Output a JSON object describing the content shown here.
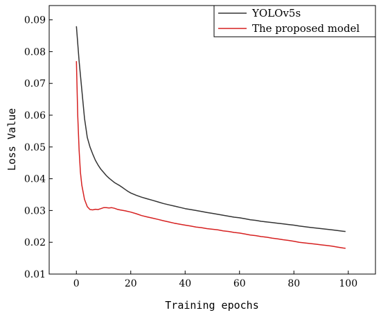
{
  "chart_data": {
    "type": "line",
    "title": "",
    "xlabel": "Training epochs",
    "ylabel": "Loss Value",
    "xlim": [
      -10,
      110
    ],
    "ylim": [
      0.01,
      0.0945
    ],
    "x_ticks": [
      0,
      20,
      40,
      60,
      80,
      100
    ],
    "x_tick_labels": [
      "0",
      "20",
      "40",
      "60",
      "80",
      "100"
    ],
    "y_ticks": [
      0.01,
      0.02,
      0.03,
      0.04,
      0.05,
      0.06,
      0.07,
      0.08,
      0.09
    ],
    "y_tick_labels": [
      "0.01",
      "0.02",
      "0.03",
      "0.04",
      "0.05",
      "0.06",
      "0.07",
      "0.08",
      "0.09"
    ],
    "grid": false,
    "legend_position": "top-right",
    "series": [
      {
        "name": "YOLOv5s",
        "color": "#333333",
        "x": [
          0,
          1,
          2,
          3,
          4,
          5,
          6,
          7,
          8,
          9,
          10,
          11,
          12,
          13,
          14,
          15,
          16,
          17,
          18,
          19,
          20,
          22,
          24,
          26,
          28,
          30,
          32,
          34,
          36,
          38,
          40,
          42,
          44,
          46,
          48,
          50,
          52,
          54,
          56,
          58,
          60,
          62,
          64,
          66,
          68,
          70,
          72,
          74,
          76,
          78,
          80,
          82,
          84,
          86,
          88,
          90,
          92,
          94,
          96,
          98,
          99
        ],
        "y": [
          0.088,
          0.077,
          0.068,
          0.059,
          0.053,
          0.05,
          0.0478,
          0.0458,
          0.0443,
          0.043,
          0.042,
          0.041,
          0.0402,
          0.0395,
          0.0388,
          0.0383,
          0.0378,
          0.0372,
          0.0366,
          0.036,
          0.0355,
          0.0348,
          0.0342,
          0.0337,
          0.0332,
          0.0327,
          0.0322,
          0.0318,
          0.0314,
          0.031,
          0.0306,
          0.0303,
          0.03,
          0.0297,
          0.0294,
          0.0291,
          0.0288,
          0.0285,
          0.0282,
          0.0279,
          0.0277,
          0.0274,
          0.0271,
          0.0269,
          0.0266,
          0.0264,
          0.0262,
          0.026,
          0.0258,
          0.0256,
          0.0254,
          0.0251,
          0.0249,
          0.0247,
          0.0245,
          0.0243,
          0.0241,
          0.0239,
          0.0237,
          0.0235,
          0.0234
        ]
      },
      {
        "name": "The proposed model",
        "color": "#d62020",
        "x": [
          0,
          0.5,
          1,
          1.5,
          2,
          3,
          4,
          5,
          6,
          7,
          8,
          9,
          10,
          11,
          12,
          13,
          14,
          15,
          16,
          18,
          20,
          22,
          24,
          26,
          28,
          30,
          32,
          34,
          36,
          38,
          40,
          42,
          44,
          46,
          48,
          50,
          52,
          54,
          56,
          58,
          60,
          62,
          64,
          66,
          68,
          70,
          72,
          74,
          76,
          78,
          80,
          82,
          84,
          86,
          88,
          90,
          92,
          94,
          96,
          98,
          99
        ],
        "y": [
          0.077,
          0.06,
          0.049,
          0.042,
          0.038,
          0.0335,
          0.0312,
          0.0303,
          0.0302,
          0.0304,
          0.0303,
          0.0306,
          0.0309,
          0.0309,
          0.0308,
          0.0309,
          0.0307,
          0.0304,
          0.0302,
          0.0299,
          0.0295,
          0.029,
          0.0284,
          0.028,
          0.0276,
          0.0272,
          0.0268,
          0.0264,
          0.026,
          0.0257,
          0.0254,
          0.0251,
          0.0248,
          0.0246,
          0.0243,
          0.0241,
          0.0239,
          0.0236,
          0.0234,
          0.0231,
          0.0229,
          0.0226,
          0.0223,
          0.0221,
          0.0218,
          0.0216,
          0.0213,
          0.0211,
          0.0208,
          0.0206,
          0.0203,
          0.02,
          0.0198,
          0.0196,
          0.0194,
          0.0192,
          0.019,
          0.0188,
          0.0185,
          0.0182,
          0.0181
        ]
      }
    ]
  }
}
